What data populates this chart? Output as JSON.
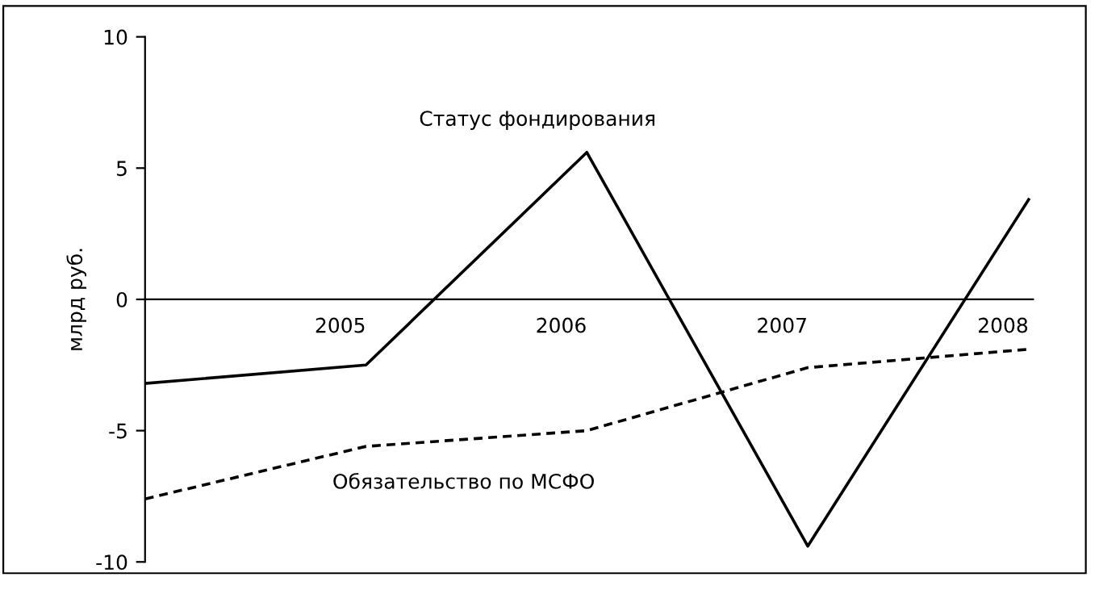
{
  "chart_data": {
    "type": "line",
    "ylabel": "млрд руб.",
    "categories": [
      null,
      "2005",
      "2006",
      "2007",
      "2008"
    ],
    "series": [
      {
        "name": "Статус фондирования",
        "color": "#000000",
        "line_style": "solid",
        "values": [
          -3.2,
          -2.5,
          5.6,
          -9.4,
          3.8
        ]
      },
      {
        "name": "Обязательство по МСФО",
        "color": "#000000",
        "line_style": "dashed",
        "values": [
          -7.6,
          -5.6,
          -5.0,
          -2.6,
          -1.9
        ]
      }
    ],
    "ylim": [
      -10,
      10
    ],
    "yticks": [
      -10,
      -5,
      0,
      5,
      10
    ],
    "grid": false,
    "legend": false,
    "marker": "none"
  }
}
